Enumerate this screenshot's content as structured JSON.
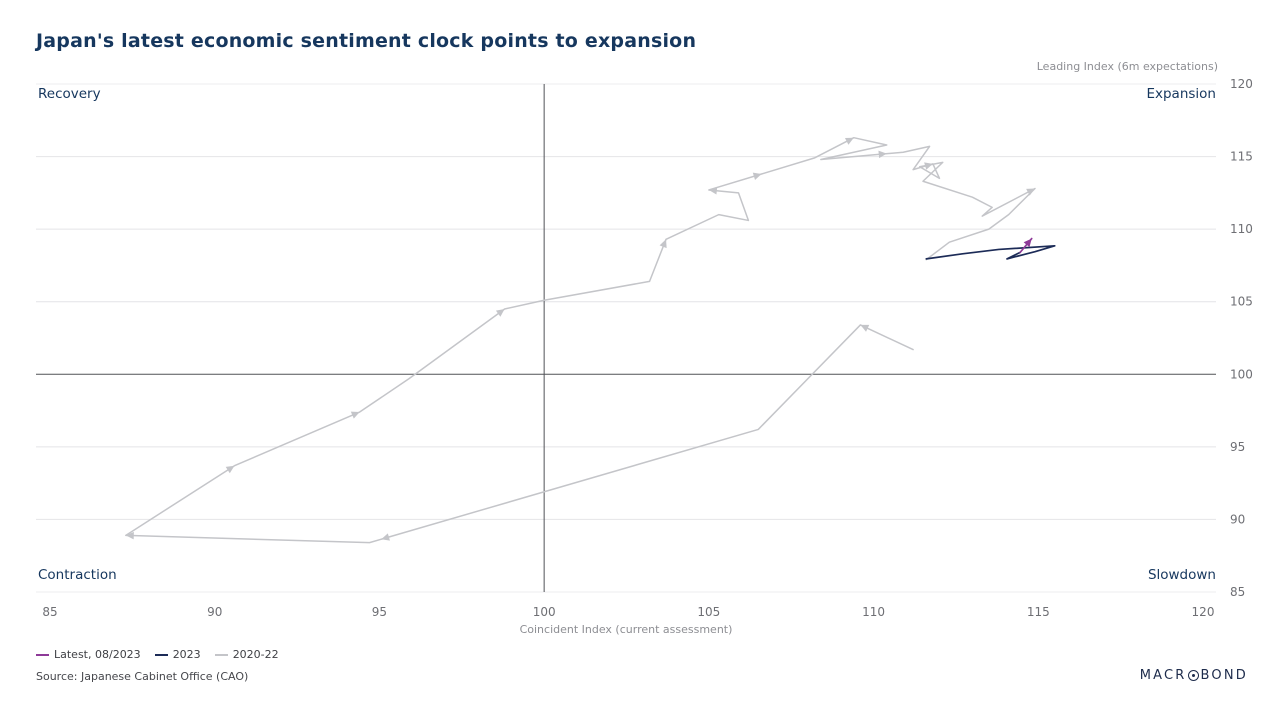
{
  "title": "Japan's latest economic sentiment clock points to expansion",
  "y_axis_note": "Leading Index (6m expectations)",
  "x_axis_title": "Coincident Index (current assessment)",
  "quadrants": {
    "top_left": "Recovery",
    "top_right": "Expansion",
    "bottom_left": "Contraction",
    "bottom_right": "Slowdown"
  },
  "source": "Source: Japanese Cabinet Office (CAO)",
  "logo": {
    "left": "MACR",
    "right": "BOND"
  },
  "colors": {
    "title": "#16375e",
    "latest": "#8e3a98",
    "year_2023": "#1c2b57",
    "years_2020_22": "#c4c5c9",
    "grid_light": "#e4e4e7",
    "quadrant_divider": "#515257",
    "tick_text": "#6e6f74"
  },
  "chart_data": {
    "type": "line",
    "subtype": "economic-clock-phase-diagram",
    "title": "Japan's latest economic sentiment clock points to expansion",
    "xlabel": "Coincident Index (current assessment)",
    "ylabel": "Leading Index (6m expectations)",
    "xlim": [
      85,
      120
    ],
    "ylim": [
      85,
      120
    ],
    "x_ticks": [
      85,
      90,
      95,
      100,
      105,
      110,
      115,
      120
    ],
    "y_ticks": [
      85,
      90,
      95,
      100,
      105,
      110,
      115,
      120
    ],
    "center": [
      100,
      100
    ],
    "grid": "horizontal",
    "legend_position": "bottom-left",
    "series": [
      {
        "name": "Latest, 08/2023",
        "color": "#8e3a98",
        "width": 1.7,
        "points": [
          [
            114.45,
            108.4
          ],
          [
            114.8,
            109.35
          ]
        ],
        "arrows": [
          {
            "seg": 0,
            "t": 1
          }
        ]
      },
      {
        "name": "2023",
        "color": "#1c2b57",
        "width": 1.7,
        "points": [
          [
            111.6,
            107.95
          ],
          [
            112.7,
            108.3
          ],
          [
            113.8,
            108.6
          ],
          [
            115.5,
            108.85
          ],
          [
            114.9,
            108.45
          ],
          [
            114.05,
            107.95
          ],
          [
            114.45,
            108.4
          ]
        ],
        "arrows": []
      },
      {
        "name": "2020-22",
        "color": "#c4c5c9",
        "width": 1.5,
        "points": [
          [
            111.2,
            101.7
          ],
          [
            109.6,
            103.4
          ],
          [
            106.5,
            96.2
          ],
          [
            94.7,
            88.4
          ],
          [
            87.3,
            88.9
          ],
          [
            90.6,
            93.7
          ],
          [
            94.4,
            97.4
          ],
          [
            95.9,
            99.7
          ],
          [
            98.8,
            104.5
          ],
          [
            100.0,
            105.1
          ],
          [
            103.2,
            106.4
          ],
          [
            103.7,
            109.3
          ],
          [
            105.3,
            111.0
          ],
          [
            106.2,
            110.6
          ],
          [
            105.9,
            112.5
          ],
          [
            105.0,
            112.7
          ],
          [
            108.2,
            114.9
          ],
          [
            109.4,
            116.3
          ],
          [
            110.4,
            115.8
          ],
          [
            108.4,
            114.8
          ],
          [
            110.9,
            115.3
          ],
          [
            111.7,
            115.7
          ],
          [
            111.2,
            114.1
          ],
          [
            111.8,
            114.5
          ],
          [
            112.0,
            113.5
          ],
          [
            111.4,
            114.3
          ],
          [
            112.1,
            114.6
          ],
          [
            111.5,
            113.3
          ],
          [
            113.0,
            112.2
          ],
          [
            113.6,
            111.5
          ],
          [
            113.3,
            110.9
          ],
          [
            114.9,
            112.8
          ],
          [
            114.1,
            111.0
          ],
          [
            113.5,
            110.0
          ],
          [
            112.3,
            109.1
          ],
          [
            111.6,
            107.9
          ]
        ],
        "arrows": [
          {
            "seg": 0,
            "t": 1
          },
          {
            "seg": 2,
            "t": 0.97
          },
          {
            "seg": 3,
            "t": 1
          },
          {
            "seg": 4,
            "t": 1
          },
          {
            "seg": 5,
            "t": 1
          },
          {
            "seg": 7,
            "t": 1
          },
          {
            "seg": 10,
            "t": 1
          },
          {
            "seg": 14,
            "t": 1
          },
          {
            "seg": 15,
            "t": 0.5
          },
          {
            "seg": 16,
            "t": 1
          },
          {
            "seg": 19,
            "t": 0.8
          },
          {
            "seg": 22,
            "t": 1
          },
          {
            "seg": 30,
            "t": 1
          }
        ]
      }
    ]
  }
}
